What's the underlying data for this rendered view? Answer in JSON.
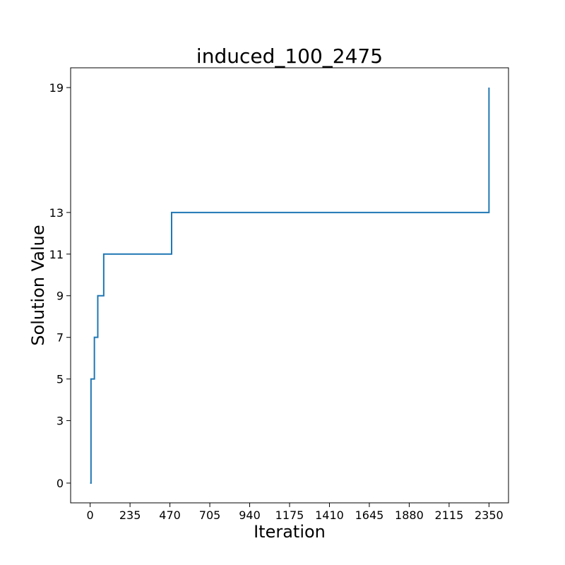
{
  "chart_data": {
    "type": "line",
    "title": "induced_100_2475",
    "xlabel": "Iteration",
    "ylabel": "Solution Value",
    "xlim": [
      -115,
      2465
    ],
    "ylim": [
      -0.95,
      19.95
    ],
    "xticks": [
      0,
      235,
      470,
      705,
      940,
      1175,
      1410,
      1645,
      1880,
      2115,
      2350
    ],
    "yticks": [
      0,
      3,
      5,
      7,
      9,
      11,
      13,
      19
    ],
    "grid": false,
    "series": [
      {
        "color": "#1f77b4",
        "step": "post",
        "x": [
          0,
          5,
          25,
          45,
          80,
          480,
          2350,
          2350
        ],
        "y": [
          0,
          5,
          7,
          9,
          11,
          13,
          13,
          19
        ]
      }
    ]
  }
}
